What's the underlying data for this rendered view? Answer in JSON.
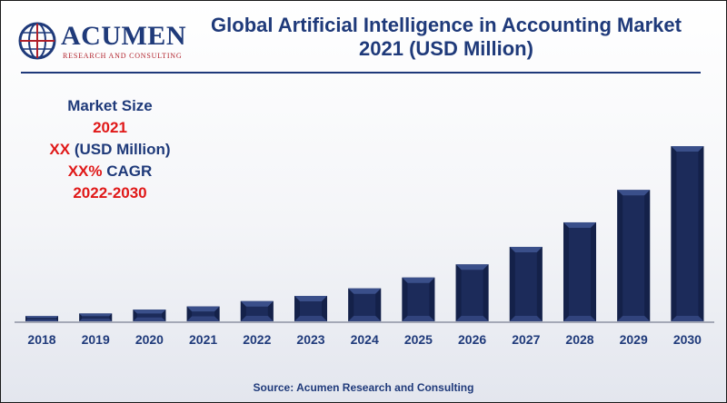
{
  "logo": {
    "wordmark": "ACUMEN",
    "tagline": "RESEARCH AND CONSULTING",
    "icon": "globe-icon"
  },
  "header": {
    "title_line1": "Global Artificial Intelligence in Accounting Market",
    "title_line2": "2021 (USD Million)"
  },
  "market_size": {
    "heading": "Market Size",
    "year": "2021",
    "value_prefix": "XX",
    "value_suffix": " (USD Million)",
    "cagr_prefix": "XX%",
    "cagr_suffix": " CAGR",
    "period": "2022-2030"
  },
  "source": "Source: Acumen Research and Consulting",
  "colors": {
    "bar": "#1c2b5a",
    "bar_light": "#3a4f8a",
    "bar_dark": "#0f1a3d",
    "title": "#1f3a7a",
    "highlight": "#e01818"
  },
  "chart_data": {
    "type": "bar",
    "title": "Global Artificial Intelligence in Accounting Market 2021 (USD Million)",
    "xlabel": "",
    "ylabel": "",
    "categories": [
      "2018",
      "2019",
      "2020",
      "2021",
      "2022",
      "2023",
      "2024",
      "2025",
      "2026",
      "2027",
      "2028",
      "2029",
      "2030"
    ],
    "values": [
      3.0,
      4.5,
      6.7,
      8.5,
      11.5,
      14.5,
      18.8,
      25.0,
      32.5,
      42.5,
      56.5,
      75.0,
      100.0
    ],
    "ylim": [
      0,
      100
    ],
    "axis_values_note": "relative scale, no numeric axis printed",
    "grid": false,
    "legend": "none"
  }
}
